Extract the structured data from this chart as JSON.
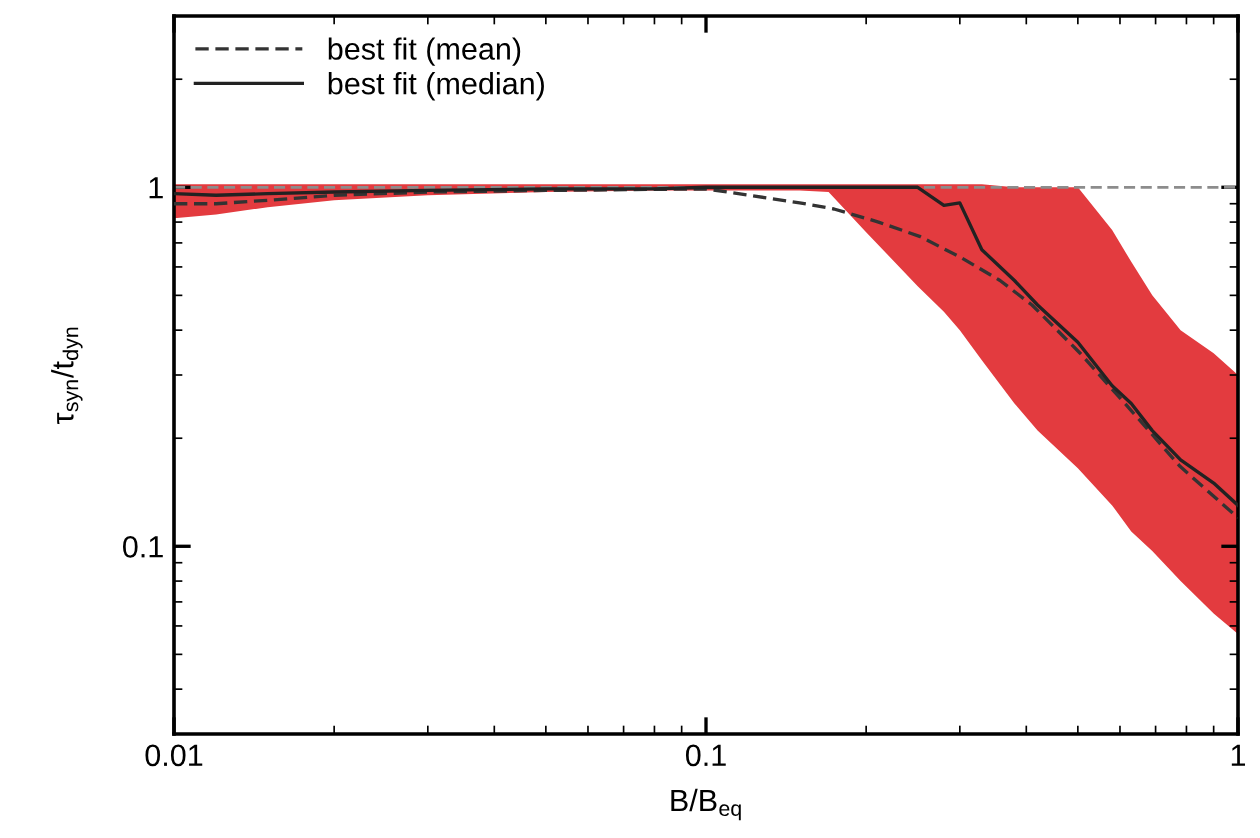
{
  "chart_data": {
    "type": "line",
    "xlabel": "B/B$_{eq}$",
    "ylabel": "τ$_{syn}$/t$_{dyn}$",
    "log": "xy",
    "xlim": [
      0.01,
      1
    ],
    "xticks": [
      0.01,
      0.1,
      1
    ],
    "ylim": [
      0.03,
      3
    ],
    "yticks": [
      0.1,
      1
    ],
    "legend": "top left",
    "grid": false,
    "ref_lines": [
      {
        "axis": "y",
        "value": 1,
        "color": "#8c8c8c",
        "line_style": "dashed"
      }
    ],
    "series": [
      {
        "name": "best fit (mean)",
        "color": "#333333",
        "line_style": "dashed",
        "x": [
          0.01,
          0.012,
          0.015,
          0.02,
          0.03,
          0.05,
          0.1,
          0.15,
          0.174,
          0.211,
          0.252,
          0.3,
          0.357,
          0.41,
          0.505,
          0.636,
          0.778,
          1.0
        ],
        "values": [
          0.9,
          0.9,
          0.92,
          0.95,
          0.97,
          0.98,
          0.99,
          0.905,
          0.87,
          0.8,
          0.73,
          0.64,
          0.55,
          0.47,
          0.345,
          0.235,
          0.167,
          0.12
        ]
      },
      {
        "name": "best fit (median)",
        "color": "#222222",
        "line_style": "solid",
        "x": [
          0.01,
          0.012,
          0.015,
          0.02,
          0.03,
          0.05,
          0.08,
          0.1,
          0.15,
          0.17,
          0.2,
          0.25,
          0.28,
          0.3,
          0.33,
          0.38,
          0.42,
          0.5,
          0.58,
          0.63,
          0.69,
          0.78,
          0.9,
          1.0
        ],
        "values": [
          0.96,
          0.95,
          0.96,
          0.97,
          0.98,
          0.99,
          0.99,
          1.0,
          1.0,
          1.0,
          1.0,
          1.0,
          0.89,
          0.905,
          0.67,
          0.55,
          0.47,
          0.37,
          0.28,
          0.25,
          0.21,
          0.174,
          0.15,
          0.13
        ]
      },
      {
        "type": "area",
        "color": "#e33b3f",
        "x": [
          0.01,
          0.012,
          0.015,
          0.02,
          0.03,
          0.05,
          0.08,
          0.1,
          0.15,
          0.17,
          0.2,
          0.25,
          0.28,
          0.3,
          0.33,
          0.38,
          0.42,
          0.5,
          0.58,
          0.63,
          0.69,
          0.78,
          0.9,
          1.0
        ],
        "values": [
          null,
          null,
          null,
          null,
          null,
          null,
          null,
          null,
          null,
          null,
          null,
          null,
          null,
          null,
          null,
          null,
          null,
          null,
          null,
          null,
          null,
          null,
          null,
          null
        ],
        "lower": [
          0.82,
          0.84,
          0.88,
          0.92,
          0.95,
          0.97,
          0.98,
          0.98,
          0.98,
          0.97,
          0.75,
          0.53,
          0.45,
          0.4,
          0.33,
          0.25,
          0.21,
          0.165,
          0.13,
          0.11,
          0.097,
          0.08,
          0.065,
          0.057
        ],
        "upper": [
          1.02,
          1.02,
          1.02,
          1.02,
          1.02,
          1.02,
          1.02,
          1.02,
          1.02,
          1.02,
          1.02,
          1.02,
          1.02,
          1.02,
          1.02,
          1.0,
          1.0,
          1.0,
          0.76,
          0.62,
          0.5,
          0.4,
          0.345,
          0.3
        ]
      }
    ]
  }
}
